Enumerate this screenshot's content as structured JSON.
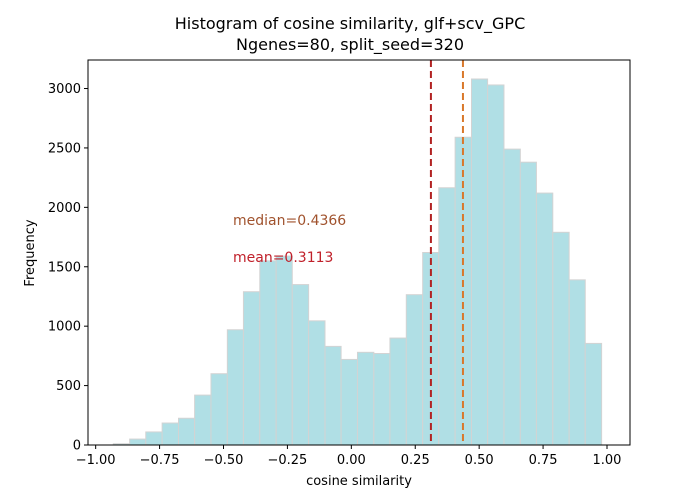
{
  "chart_data": {
    "type": "bar",
    "title": "Histogram of cosine similarity, glf+scv_GPC",
    "subtitle": "Ngenes=80, split_seed=320",
    "xlabel": "cosine similarity",
    "ylabel": "Frequency",
    "xlim": [
      -1.03,
      1.09
    ],
    "ylim": [
      0,
      3240
    ],
    "xticks": [
      -1.0,
      -0.75,
      -0.5,
      -0.25,
      0.0,
      0.25,
      0.5,
      0.75,
      1.0
    ],
    "xtick_labels": [
      "−1.00",
      "−0.75",
      "−0.50",
      "−0.25",
      "0.00",
      "0.25",
      "0.50",
      "0.75",
      "1.00"
    ],
    "yticks": [
      0,
      500,
      1000,
      1500,
      2000,
      2500,
      3000
    ],
    "ytick_labels": [
      "0",
      "500",
      "1000",
      "1500",
      "2000",
      "2500",
      "3000"
    ],
    "bin_edges": [
      -0.931,
      -0.867,
      -0.804,
      -0.74,
      -0.676,
      -0.613,
      -0.549,
      -0.485,
      -0.422,
      -0.358,
      -0.294,
      -0.231,
      -0.167,
      -0.103,
      -0.04,
      0.024,
      0.088,
      0.151,
      0.215,
      0.279,
      0.342,
      0.406,
      0.47,
      0.533,
      0.597,
      0.661,
      0.724,
      0.788,
      0.852,
      0.915,
      0.979
    ],
    "counts": [
      10,
      50,
      110,
      185,
      225,
      420,
      600,
      970,
      1290,
      1550,
      1590,
      1350,
      1045,
      830,
      720,
      780,
      770,
      900,
      1265,
      1620,
      2165,
      2590,
      3080,
      3030,
      2490,
      2380,
      2120,
      1790,
      1390,
      855
    ],
    "bar_color": "#b0dfe5",
    "bar_edge_color": "#d3d3d3",
    "median": 0.4366,
    "mean": 0.3113,
    "median_label": "median=0.4366",
    "mean_label": "mean=0.3113",
    "median_color": "#d9782b",
    "mean_color": "#b22222",
    "median_text_color": "#a0522d",
    "mean_text_color": "#c0202a",
    "grid": false
  }
}
